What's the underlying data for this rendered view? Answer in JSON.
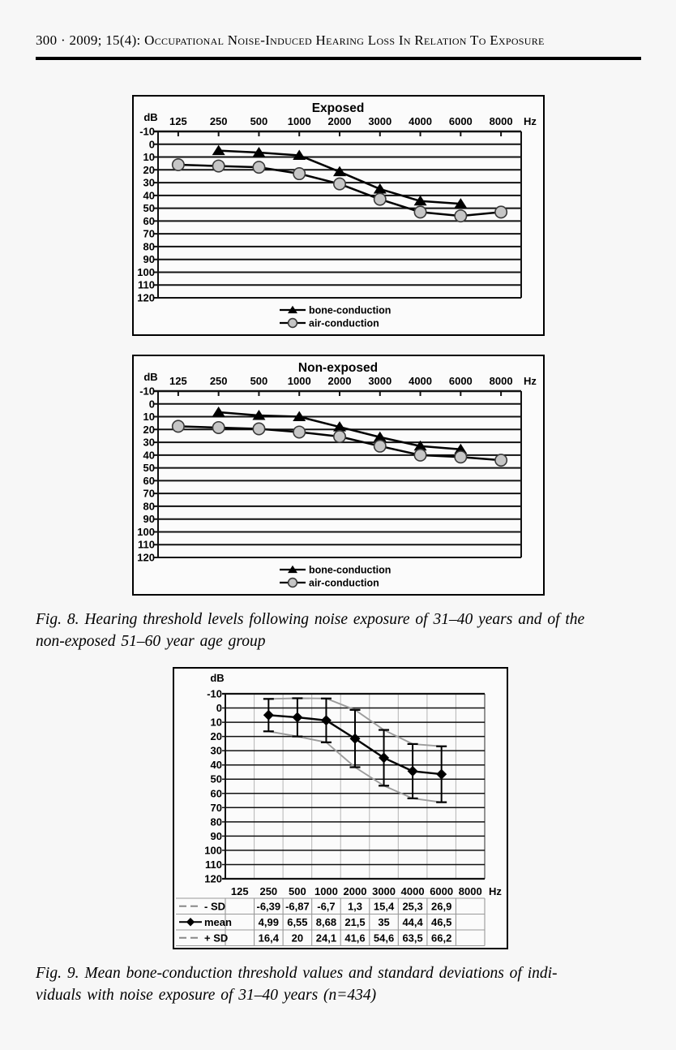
{
  "header": {
    "text": "300 · 2009; 15(4): Occupational Noise-Induced Hearing Loss In Relation To Exposure"
  },
  "figure8": {
    "caption_lines": [
      "Fig. 8. Hearing threshold levels following noise exposure of 31–40 years and of the",
      "non-exposed 51–60 year age group"
    ]
  },
  "figure9": {
    "caption_lines": [
      "Fig. 9. Mean bone-conduction threshold values and standard deviations of indi-",
      "viduals with noise exposure of 31–40 years (n=434)"
    ]
  },
  "chart_data": [
    {
      "id": "exposed",
      "type": "line",
      "title": "Exposed",
      "y_unit": "dB",
      "x_unit": "Hz",
      "categories": [
        "125",
        "250",
        "500",
        "1000",
        "2000",
        "3000",
        "4000",
        "6000",
        "8000"
      ],
      "ylim": [
        -10,
        120
      ],
      "y_step": 10,
      "y_inverted_audiogram": true,
      "grid": true,
      "legend_position": "bottom",
      "series": [
        {
          "name": "bone-conduction",
          "marker": "triangle",
          "color": "#000000",
          "values": [
            null,
            5,
            6.5,
            8.7,
            21.5,
            35,
            44.4,
            46.5,
            null
          ]
        },
        {
          "name": "air-conduction",
          "marker": "circle",
          "color": "#c6c6c6",
          "values": [
            16,
            17,
            18,
            23,
            31,
            43,
            53,
            56,
            53
          ]
        }
      ]
    },
    {
      "id": "nonexposed",
      "type": "line",
      "title": "Non-exposed",
      "y_unit": "dB",
      "x_unit": "Hz",
      "categories": [
        "125",
        "250",
        "500",
        "1000",
        "2000",
        "3000",
        "4000",
        "6000",
        "8000"
      ],
      "ylim": [
        -10,
        120
      ],
      "y_step": 10,
      "y_inverted_audiogram": true,
      "grid": true,
      "legend_position": "bottom",
      "series": [
        {
          "name": "bone-conduction",
          "marker": "triangle",
          "color": "#000000",
          "values": [
            null,
            6.5,
            9,
            10,
            18,
            26,
            33,
            35.5,
            null
          ]
        },
        {
          "name": "air-conduction",
          "marker": "circle",
          "color": "#c6c6c6",
          "values": [
            17.5,
            18.5,
            19.5,
            22,
            25.5,
            33,
            40,
            41.5,
            44
          ]
        }
      ]
    },
    {
      "id": "fig9-mean-sd",
      "type": "line",
      "title": "",
      "y_unit": "dB",
      "x_unit": "Hz",
      "categories": [
        "125",
        "250",
        "500",
        "1000",
        "2000",
        "3000",
        "4000",
        "6000",
        "8000"
      ],
      "ylim": [
        -10,
        120
      ],
      "y_step": 10,
      "y_inverted_audiogram": true,
      "grid": true,
      "error_bars": true,
      "table": true,
      "sd_color": "#9c9c9c",
      "rows": [
        {
          "name": "- SD",
          "marker": "dash",
          "color": "#9c9c9c",
          "display": [
            "",
            "-6,39",
            "-6,87",
            "-6,7",
            "1,3",
            "15,4",
            "25,3",
            "26,9",
            ""
          ]
        },
        {
          "name": "mean",
          "marker": "diamond",
          "color": "#000000",
          "display": [
            "",
            "4,99",
            "6,55",
            "8,68",
            "21,5",
            "35",
            "44,4",
            "46,5",
            ""
          ]
        },
        {
          "name": "+ SD",
          "marker": "dash",
          "color": "#9c9c9c",
          "display": [
            "",
            "16,4",
            "20",
            "24,1",
            "41,6",
            "54,6",
            "63,5",
            "66,2",
            ""
          ]
        }
      ]
    }
  ]
}
